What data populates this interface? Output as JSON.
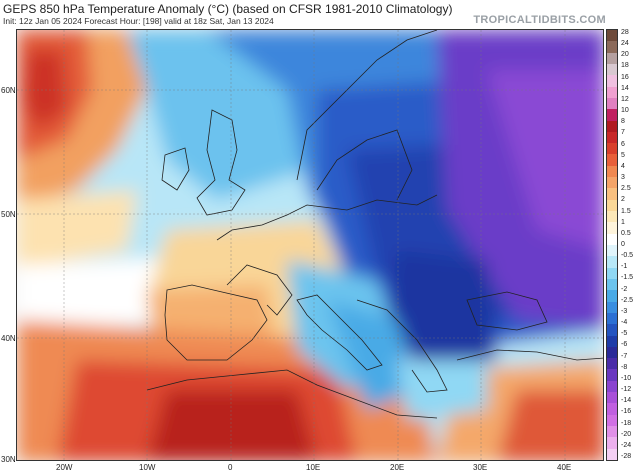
{
  "header": {
    "title": "GEPS 850 hPa Temperature Anomaly (°C) (based on CFSR 1981-2010 Climatology)",
    "subtitle": "Init: 12z Jan 05 2024   Forecast Hour: [198]   valid at 18z Sat, Jan 13 2024",
    "brand": "TROPICALTIDBITS.COM"
  },
  "map": {
    "lat_labels": [
      "60N",
      "50N",
      "40N",
      "30N"
    ],
    "lon_labels": [
      "20W",
      "10W",
      "0",
      "10E",
      "20E",
      "30E",
      "40E"
    ]
  },
  "colorbar": {
    "labels": [
      "28",
      "24",
      "20",
      "18",
      "16",
      "14",
      "12",
      "10",
      "8",
      "7",
      "6",
      "5",
      "4",
      "3",
      "2.5",
      "2",
      "1.5",
      "1",
      "0.5",
      "0",
      "-0.5",
      "-1",
      "-1.5",
      "-2",
      "-2.5",
      "-3",
      "-4",
      "-5",
      "-6",
      "-7",
      "-8",
      "-10",
      "-12",
      "-14",
      "-16",
      "-18",
      "-20",
      "-24",
      "-28"
    ],
    "colors": [
      "#6e4a3a",
      "#8c6a5a",
      "#b5a0a0",
      "#d8c8d0",
      "#f0c0e0",
      "#f0a0d0",
      "#e080c0",
      "#c02060",
      "#b01a20",
      "#c82828",
      "#d8402c",
      "#e8603a",
      "#f08850",
      "#f4a468",
      "#f8c080",
      "#fad898",
      "#fce8b8",
      "#fef4dc",
      "#ffffff",
      "#e0f4fb",
      "#b8e8f8",
      "#90d8f4",
      "#6cc4ee",
      "#4aaae6",
      "#3a8ee0",
      "#2c70d4",
      "#2454c0",
      "#1e3ca8",
      "#2a2a98",
      "#4a2ca8",
      "#6a38c0",
      "#8a44d0",
      "#a850d8",
      "#c060e0",
      "#d070e4",
      "#e090e8",
      "#ecb0ee",
      "#f4d0f4"
    ]
  },
  "colors": {
    "warm": "#d84030",
    "cold": "#2c50c0",
    "very_cold": "#6a3ec8",
    "neutral": "#fdf6e6"
  }
}
